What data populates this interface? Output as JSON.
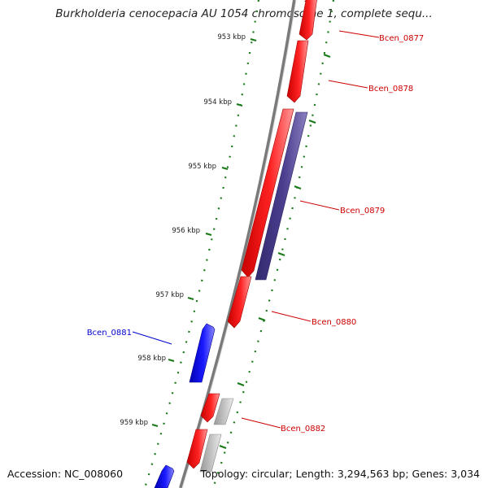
{
  "header": {
    "title": "Burkholderia cenocepacia AU 1054 chromosome 1, complete sequ..."
  },
  "footer": {
    "accession": "Accession: NC_008060",
    "summary": "Topology: circular; Length: 3,294,563 bp; Genes: 3,034"
  },
  "ticks": [
    "953 kbp",
    "954 kbp",
    "955 kbp",
    "956 kbp",
    "957 kbp",
    "958 kbp",
    "959 kbp"
  ],
  "genes": {
    "bcen_0877": {
      "label": "Bcen_0877",
      "color": "#cc0000"
    },
    "bcen_0878": {
      "label": "Bcen_0878",
      "color": "#cc0000"
    },
    "bcen_0879": {
      "label": "Bcen_0879",
      "color": "#cc0000"
    },
    "bcen_0880": {
      "label": "Bcen_0880",
      "color": "#cc0000"
    },
    "bcen_0881": {
      "label": "Bcen_0881",
      "color": "#0000cc"
    },
    "bcen_0882": {
      "label": "Bcen_0882",
      "color": "#cc0000"
    }
  },
  "colors": {
    "forward_cds": "#ff1a1a",
    "reverse_cds": "#1010ff",
    "other_feature": "#4b3f8f",
    "grey_feature": "#bdbdbd",
    "backbone": "#7a7a7a",
    "tick_marks": "#1a7a1a"
  }
}
